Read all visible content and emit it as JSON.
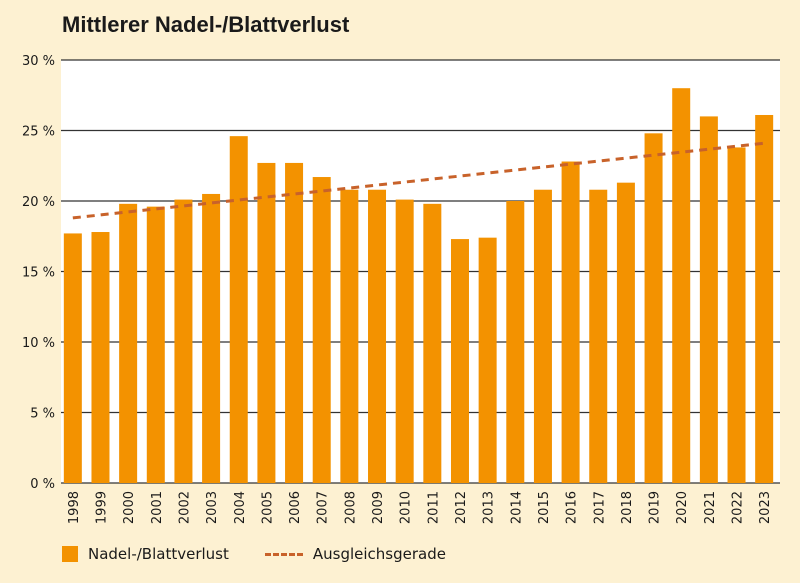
{
  "chart_data": {
    "type": "bar",
    "title": "Mittlerer Nadel-/Blattverlust",
    "categories": [
      "1998",
      "1999",
      "2000",
      "2001",
      "2002",
      "2003",
      "2004",
      "2005",
      "2006",
      "2007",
      "2008",
      "2009",
      "2010",
      "2011",
      "2012",
      "2013",
      "2014",
      "2015",
      "2016",
      "2017",
      "2018",
      "2019",
      "2020",
      "2021",
      "2022",
      "2023"
    ],
    "series": [
      {
        "name": "Nadel-/Blattverlust",
        "color": "#f39200",
        "values": [
          17.7,
          17.8,
          19.8,
          19.6,
          20.1,
          20.5,
          24.6,
          22.7,
          22.7,
          21.7,
          20.8,
          20.8,
          20.1,
          19.8,
          17.3,
          17.4,
          20.0,
          20.8,
          22.8,
          20.8,
          21.3,
          24.8,
          28.0,
          26.0,
          23.8,
          26.1
        ]
      }
    ],
    "trendline": {
      "name": "Ausgleichsgerade",
      "color": "#c8622a",
      "start": 18.8,
      "end": 24.1,
      "style": "dashed"
    },
    "ylim": [
      0,
      30
    ],
    "yticks": [
      0,
      5,
      10,
      15,
      20,
      25,
      30
    ],
    "ytick_labels": [
      "0 %",
      "5 %",
      "10 %",
      "15 %",
      "20 %",
      "25 %",
      "30 %"
    ],
    "grid": true,
    "legend_position": "bottom-left",
    "xlabel": "",
    "ylabel": ""
  }
}
